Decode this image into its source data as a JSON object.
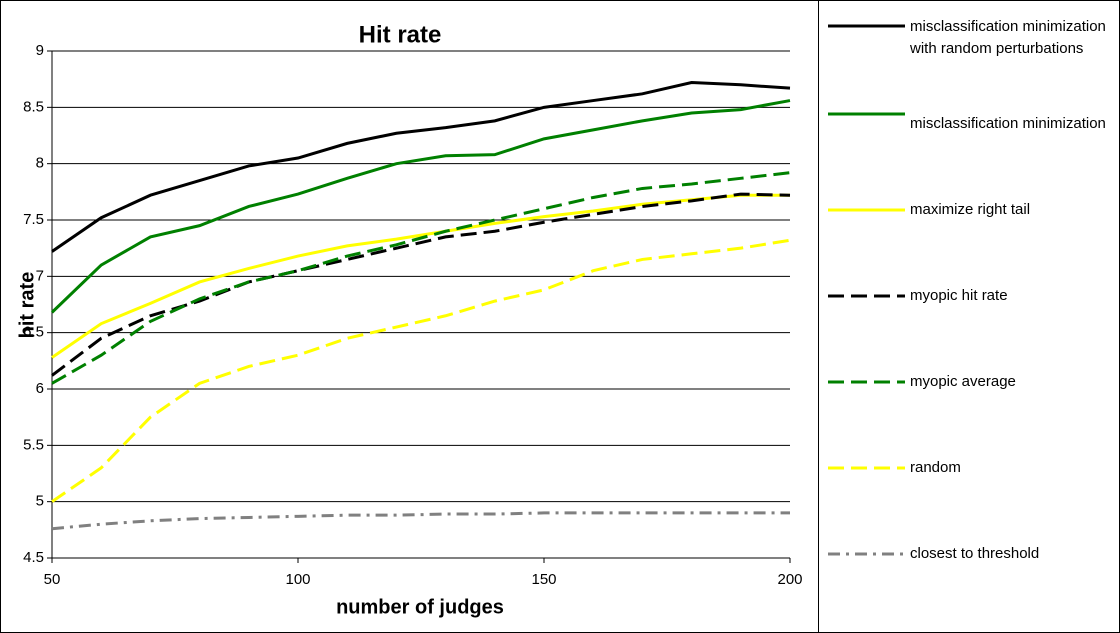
{
  "chart_data": {
    "type": "line",
    "title": "Hit rate",
    "xlabel": "number of judges",
    "ylabel": "hit rate",
    "x": [
      50,
      60,
      70,
      80,
      90,
      100,
      110,
      120,
      130,
      140,
      150,
      160,
      170,
      180,
      190,
      200
    ],
    "xlim": [
      50,
      200
    ],
    "xticks": [
      50,
      100,
      150,
      200
    ],
    "ylim": [
      4.5,
      9
    ],
    "yticks": [
      4.5,
      5,
      5.5,
      6,
      6.5,
      7,
      7.5,
      8,
      8.5,
      9
    ],
    "grid": true,
    "legend": "right",
    "series": [
      {
        "name": "misclassification minimization with random perturbations",
        "color": "#000000",
        "dash": "solid",
        "values": [
          7.22,
          7.52,
          7.72,
          7.85,
          7.98,
          8.05,
          8.18,
          8.27,
          8.32,
          8.38,
          8.5,
          8.56,
          8.62,
          8.72,
          8.7,
          8.67
        ]
      },
      {
        "name": "misclassification minimization",
        "color": "#008000",
        "dash": "solid",
        "values": [
          6.68,
          7.1,
          7.35,
          7.45,
          7.62,
          7.73,
          7.87,
          8.0,
          8.07,
          8.08,
          8.22,
          8.3,
          8.38,
          8.45,
          8.48,
          8.56
        ]
      },
      {
        "name": "maximize right tail",
        "color": "#ffff00",
        "dash": "solid",
        "values": [
          6.28,
          6.58,
          6.76,
          6.95,
          7.07,
          7.18,
          7.27,
          7.33,
          7.4,
          7.47,
          7.53,
          7.58,
          7.64,
          7.68,
          7.72,
          7.72
        ]
      },
      {
        "name": "myopic hit rate",
        "color": "#000000",
        "dash": "dashed",
        "values": [
          6.12,
          6.45,
          6.65,
          6.78,
          6.95,
          7.05,
          7.15,
          7.25,
          7.35,
          7.4,
          7.48,
          7.55,
          7.62,
          7.67,
          7.73,
          7.72
        ]
      },
      {
        "name": "myopic average",
        "color": "#008000",
        "dash": "dashed",
        "values": [
          6.05,
          6.3,
          6.6,
          6.8,
          6.95,
          7.05,
          7.18,
          7.28,
          7.4,
          7.5,
          7.6,
          7.7,
          7.78,
          7.82,
          7.87,
          7.92
        ]
      },
      {
        "name": "random",
        "color": "#ffff00",
        "dash": "dashed",
        "values": [
          5.0,
          5.3,
          5.75,
          6.05,
          6.2,
          6.3,
          6.45,
          6.55,
          6.65,
          6.78,
          6.88,
          7.05,
          7.15,
          7.2,
          7.25,
          7.32
        ]
      },
      {
        "name": "closest to threshold",
        "color": "#808080",
        "dash": "dashdot",
        "values": [
          4.76,
          4.8,
          4.83,
          4.85,
          4.86,
          4.87,
          4.88,
          4.88,
          4.89,
          4.89,
          4.9,
          4.9,
          4.9,
          4.9,
          4.9,
          4.9
        ]
      }
    ]
  }
}
